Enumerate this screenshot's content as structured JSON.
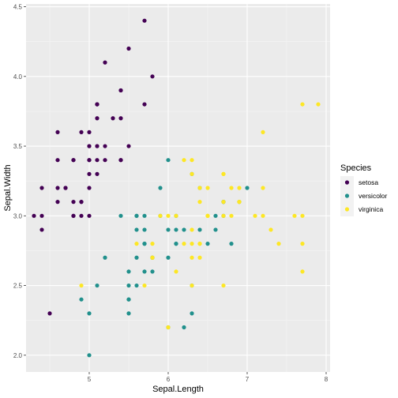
{
  "chart_data": {
    "type": "scatter",
    "xlabel": "Sepal.Length",
    "ylabel": "Sepal.Width",
    "xlim": [
      4.2,
      8.05
    ],
    "ylim": [
      1.88,
      4.52
    ],
    "x_ticks": [
      5,
      6,
      7,
      8
    ],
    "y_ticks": [
      2.0,
      2.5,
      3.0,
      3.5,
      4.0,
      4.5
    ],
    "x_tick_labels": [
      "5",
      "6",
      "7",
      "8"
    ],
    "y_tick_labels": [
      "2.0",
      "2.5",
      "3.0",
      "3.5",
      "4.0",
      "4.5"
    ],
    "grid": true,
    "panel_background": "#EBEBEB",
    "legend": {
      "title": "Species",
      "position": "right"
    },
    "series": [
      {
        "name": "setosa",
        "color": "#440154",
        "points": [
          [
            5.1,
            3.5
          ],
          [
            4.9,
            3.0
          ],
          [
            4.7,
            3.2
          ],
          [
            4.6,
            3.1
          ],
          [
            5.0,
            3.6
          ],
          [
            5.4,
            3.9
          ],
          [
            4.6,
            3.4
          ],
          [
            5.0,
            3.4
          ],
          [
            4.4,
            2.9
          ],
          [
            4.9,
            3.1
          ],
          [
            5.4,
            3.7
          ],
          [
            4.8,
            3.4
          ],
          [
            4.8,
            3.0
          ],
          [
            4.3,
            3.0
          ],
          [
            5.8,
            4.0
          ],
          [
            5.7,
            4.4
          ],
          [
            5.4,
            3.9
          ],
          [
            5.1,
            3.5
          ],
          [
            5.7,
            3.8
          ],
          [
            5.1,
            3.8
          ],
          [
            5.4,
            3.4
          ],
          [
            5.1,
            3.7
          ],
          [
            4.6,
            3.6
          ],
          [
            5.1,
            3.3
          ],
          [
            4.8,
            3.4
          ],
          [
            5.0,
            3.0
          ],
          [
            5.0,
            3.4
          ],
          [
            5.2,
            3.5
          ],
          [
            5.2,
            3.4
          ],
          [
            4.7,
            3.2
          ],
          [
            4.8,
            3.1
          ],
          [
            5.4,
            3.4
          ],
          [
            5.2,
            4.1
          ],
          [
            5.5,
            4.2
          ],
          [
            4.9,
            3.1
          ],
          [
            5.0,
            3.2
          ],
          [
            5.5,
            3.5
          ],
          [
            4.9,
            3.6
          ],
          [
            4.4,
            3.0
          ],
          [
            5.1,
            3.4
          ],
          [
            5.0,
            3.5
          ],
          [
            4.5,
            2.3
          ],
          [
            4.4,
            3.2
          ],
          [
            5.0,
            3.5
          ],
          [
            5.1,
            3.8
          ],
          [
            4.8,
            3.0
          ],
          [
            5.1,
            3.8
          ],
          [
            4.6,
            3.2
          ],
          [
            5.3,
            3.7
          ],
          [
            5.0,
            3.3
          ]
        ]
      },
      {
        "name": "versicolor",
        "color": "#21908C",
        "points": [
          [
            7.0,
            3.2
          ],
          [
            6.4,
            3.2
          ],
          [
            6.9,
            3.1
          ],
          [
            5.5,
            2.3
          ],
          [
            6.5,
            2.8
          ],
          [
            5.7,
            2.8
          ],
          [
            6.3,
            3.3
          ],
          [
            4.9,
            2.4
          ],
          [
            6.6,
            2.9
          ],
          [
            5.2,
            2.7
          ],
          [
            5.0,
            2.0
          ],
          [
            5.9,
            3.0
          ],
          [
            6.0,
            2.2
          ],
          [
            6.1,
            2.9
          ],
          [
            5.6,
            2.9
          ],
          [
            6.7,
            3.1
          ],
          [
            5.6,
            3.0
          ],
          [
            5.8,
            2.7
          ],
          [
            6.2,
            2.2
          ],
          [
            5.6,
            2.5
          ],
          [
            5.9,
            3.2
          ],
          [
            6.1,
            2.8
          ],
          [
            6.3,
            2.5
          ],
          [
            6.1,
            2.8
          ],
          [
            6.4,
            2.9
          ],
          [
            6.6,
            3.0
          ],
          [
            6.8,
            2.8
          ],
          [
            6.7,
            3.0
          ],
          [
            6.0,
            2.9
          ],
          [
            5.7,
            2.6
          ],
          [
            5.5,
            2.4
          ],
          [
            5.5,
            2.4
          ],
          [
            5.8,
            2.7
          ],
          [
            6.0,
            2.7
          ],
          [
            5.4,
            3.0
          ],
          [
            6.0,
            3.4
          ],
          [
            6.7,
            3.1
          ],
          [
            6.3,
            2.3
          ],
          [
            5.6,
            3.0
          ],
          [
            5.5,
            2.5
          ],
          [
            5.5,
            2.6
          ],
          [
            6.1,
            3.0
          ],
          [
            5.8,
            2.6
          ],
          [
            5.0,
            2.3
          ],
          [
            5.6,
            2.7
          ],
          [
            5.7,
            3.0
          ],
          [
            5.7,
            2.9
          ],
          [
            6.2,
            2.9
          ],
          [
            5.1,
            2.5
          ],
          [
            5.7,
            2.8
          ]
        ]
      },
      {
        "name": "virginica",
        "color": "#FDE725",
        "points": [
          [
            6.3,
            3.3
          ],
          [
            5.8,
            2.7
          ],
          [
            7.1,
            3.0
          ],
          [
            6.3,
            2.9
          ],
          [
            6.5,
            3.0
          ],
          [
            7.6,
            3.0
          ],
          [
            4.9,
            2.5
          ],
          [
            7.3,
            2.9
          ],
          [
            6.7,
            2.5
          ],
          [
            7.2,
            3.6
          ],
          [
            6.5,
            3.2
          ],
          [
            6.4,
            2.7
          ],
          [
            6.8,
            3.0
          ],
          [
            5.7,
            2.5
          ],
          [
            5.8,
            2.8
          ],
          [
            6.4,
            3.2
          ],
          [
            6.5,
            3.0
          ],
          [
            7.7,
            3.8
          ],
          [
            7.7,
            2.6
          ],
          [
            6.0,
            2.2
          ],
          [
            6.9,
            3.2
          ],
          [
            5.6,
            2.8
          ],
          [
            7.7,
            2.8
          ],
          [
            6.3,
            2.7
          ],
          [
            6.7,
            3.3
          ],
          [
            7.2,
            3.2
          ],
          [
            6.2,
            2.8
          ],
          [
            6.1,
            3.0
          ],
          [
            6.4,
            2.8
          ],
          [
            7.2,
            3.0
          ],
          [
            7.4,
            2.8
          ],
          [
            7.9,
            3.8
          ],
          [
            6.4,
            2.8
          ],
          [
            6.3,
            2.8
          ],
          [
            6.1,
            2.6
          ],
          [
            7.7,
            3.0
          ],
          [
            6.3,
            3.4
          ],
          [
            6.4,
            3.1
          ],
          [
            6.0,
            3.0
          ],
          [
            6.9,
            3.1
          ],
          [
            6.7,
            3.1
          ],
          [
            6.9,
            3.1
          ],
          [
            5.8,
            2.7
          ],
          [
            6.8,
            3.2
          ],
          [
            6.7,
            3.3
          ],
          [
            6.7,
            3.0
          ],
          [
            6.3,
            2.5
          ],
          [
            6.5,
            3.0
          ],
          [
            6.2,
            3.4
          ],
          [
            5.9,
            3.0
          ]
        ]
      }
    ]
  }
}
